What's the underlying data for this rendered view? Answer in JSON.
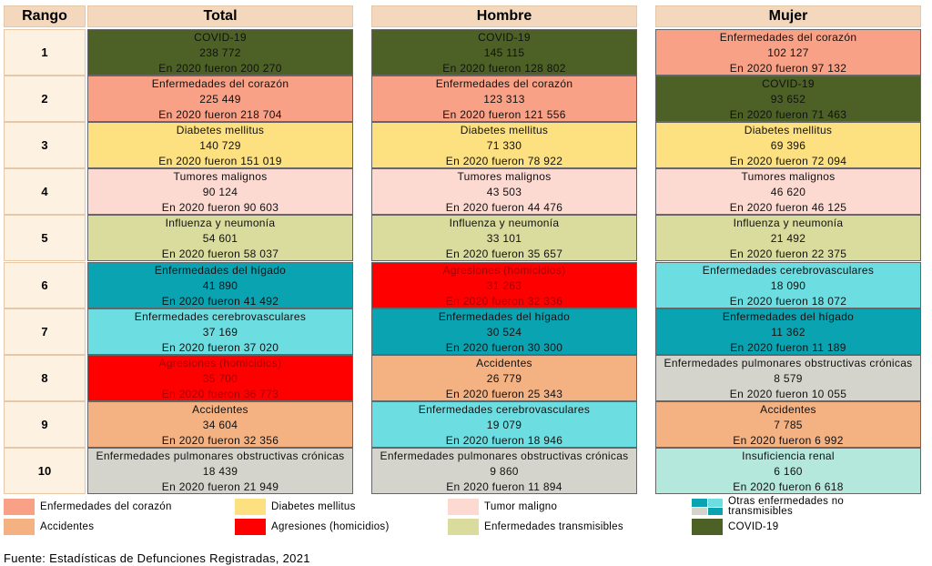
{
  "header": {
    "rank": "Rango",
    "columns": [
      "Total",
      "Hombre",
      "Mujer"
    ]
  },
  "table": {
    "rows": [
      {
        "rank": "1",
        "cells": [
          {
            "cause": "COVID-19",
            "deaths": "238 772",
            "note": "En 2020 fueron 200 270",
            "color": "#4d6126"
          },
          {
            "cause": "COVID-19",
            "deaths": "145 115",
            "note": "En 2020 fueron 128 802",
            "color": "#4d6126"
          },
          {
            "cause": "Enfermedades del corazón",
            "deaths": "102 127",
            "note": "En 2020 fueron 97 132",
            "color": "#f8a186"
          }
        ]
      },
      {
        "rank": "2",
        "cells": [
          {
            "cause": "Enfermedades del corazón",
            "deaths": "225 449",
            "note": "En 2020 fueron 218 704",
            "color": "#f8a186"
          },
          {
            "cause": "Enfermedades del corazón",
            "deaths": "123 313",
            "note": "En 2020 fueron 121 556",
            "color": "#f8a186"
          },
          {
            "cause": "COVID-19",
            "deaths": "93 652",
            "note": "En 2020 fueron 71 463",
            "color": "#4d6126"
          }
        ]
      },
      {
        "rank": "3",
        "cells": [
          {
            "cause": "Diabetes mellitus",
            "deaths": "140 729",
            "note": "En 2020 fueron 151 019",
            "color": "#fde07f"
          },
          {
            "cause": "Diabetes mellitus",
            "deaths": "71 330",
            "note": "En 2020 fueron 78 922",
            "color": "#fde07f"
          },
          {
            "cause": "Diabetes mellitus",
            "deaths": "69 396",
            "note": "En 2020 fueron 72 094",
            "color": "#fde07f"
          }
        ]
      },
      {
        "rank": "4",
        "cells": [
          {
            "cause": "Tumores malignos",
            "deaths": "90 124",
            "note": "En 2020 fueron 90 603",
            "color": "#fcd9d1"
          },
          {
            "cause": "Tumores malignos",
            "deaths": "43 503",
            "note": "En 2020 fueron 44 476",
            "color": "#fcd9d1"
          },
          {
            "cause": "Tumores malignos",
            "deaths": "46 620",
            "note": "En 2020 fueron 46 125",
            "color": "#fcd9d1"
          }
        ]
      },
      {
        "rank": "5",
        "cells": [
          {
            "cause": "Influenza y neumonía",
            "deaths": "54 601",
            "note": "En 2020 fueron 58 037",
            "color": "#d9dc9c"
          },
          {
            "cause": "Influenza y neumonía",
            "deaths": "33 101",
            "note": "En 2020 fueron 35 657",
            "color": "#d9dc9c"
          },
          {
            "cause": "Influenza y neumonía",
            "deaths": "21 492",
            "note": "En 2020 fueron 22 375",
            "color": "#d9dc9c"
          }
        ]
      },
      {
        "rank": "6",
        "cells": [
          {
            "cause": "Enfermedades del hígado",
            "deaths": "41 890",
            "note": "En 2020 fueron 41 492",
            "color": "#0aa3b1"
          },
          {
            "cause": "Agresiones (homicidios)",
            "deaths": "31 263",
            "note": "En 2020 fueron 32 336",
            "color": "#ff0000",
            "text_color": "#a30000"
          },
          {
            "cause": "Enfermedades cerebrovasculares",
            "deaths": "18 090",
            "note": "En 2020 fueron 18 072",
            "color": "#6cdde0"
          }
        ]
      },
      {
        "rank": "7",
        "cells": [
          {
            "cause": "Enfermedades cerebrovasculares",
            "deaths": "37 169",
            "note": "En 2020 fueron 37 020",
            "color": "#6cdde0"
          },
          {
            "cause": "Enfermedades del hígado",
            "deaths": "30 524",
            "note": "En 2020 fueron 30 300",
            "color": "#0aa3b1"
          },
          {
            "cause": "Enfermedades del hígado",
            "deaths": "11 362",
            "note": "En 2020 fueron 11 189",
            "color": "#0aa3b1"
          }
        ]
      },
      {
        "rank": "8",
        "cells": [
          {
            "cause": "Agresiones (homicidios)",
            "deaths": "35 700",
            "note": "En 2020 fueron 36 773",
            "color": "#ff0000",
            "text_color": "#a30000"
          },
          {
            "cause": "Accidentes",
            "deaths": "26 779",
            "note": "En 2020 fueron 25 343",
            "color": "#f4b182"
          },
          {
            "cause": "Enfermedades pulmonares obstructivas crónicas",
            "deaths": "8 579",
            "note": "En 2020 fueron 10 055",
            "color": "#d4d4cc"
          }
        ]
      },
      {
        "rank": "9",
        "cells": [
          {
            "cause": "Accidentes",
            "deaths": "34 604",
            "note": "En 2020 fueron 32 356",
            "color": "#f4b182"
          },
          {
            "cause": "Enfermedades cerebrovasculares",
            "deaths": "19 079",
            "note": "En 2020 fueron 18 946",
            "color": "#6cdde0"
          },
          {
            "cause": "Accidentes",
            "deaths": "7 785",
            "note": "En 2020 fueron 6 992",
            "color": "#f4b182"
          }
        ]
      },
      {
        "rank": "10",
        "cells": [
          {
            "cause": "Enfermedades pulmonares obstructivas crónicas",
            "deaths": "18 439",
            "note": "En 2020 fueron 21 949",
            "color": "#d4d4cc"
          },
          {
            "cause": "Enfermedades pulmonares obstructivas crónicas",
            "deaths": "9 860",
            "note": "En 2020 fueron 11 894",
            "color": "#d4d4cc"
          },
          {
            "cause": "Insuficiencia renal",
            "deaths": "6 160",
            "note": "En 2020 fueron 6 618",
            "color": "#b4e8dd"
          }
        ]
      }
    ]
  },
  "legend": [
    {
      "label": "Enfermedades del corazón",
      "colors": [
        "#f8a186"
      ]
    },
    {
      "label": "Diabetes mellitus",
      "colors": [
        "#fde07f"
      ]
    },
    {
      "label": "Tumor maligno",
      "colors": [
        "#fcd9d1"
      ]
    },
    {
      "label": "Otras enfermedades no transmisibles",
      "colors": [
        "#0aa3b1",
        "#6cdde0",
        "#d4d4cc",
        "#0aa3b1"
      ]
    },
    {
      "label": "Accidentes",
      "colors": [
        "#f4b182"
      ]
    },
    {
      "label": "Agresiones (homicidios)",
      "colors": [
        "#ff0000"
      ]
    },
    {
      "label": "Enfermedades transmisibles",
      "colors": [
        "#d9dc9c"
      ]
    },
    {
      "label": "COVID-19",
      "colors": [
        "#4d6126"
      ]
    }
  ],
  "source": "Fuente: Estadísticas de Defunciones Registradas, 2021"
}
